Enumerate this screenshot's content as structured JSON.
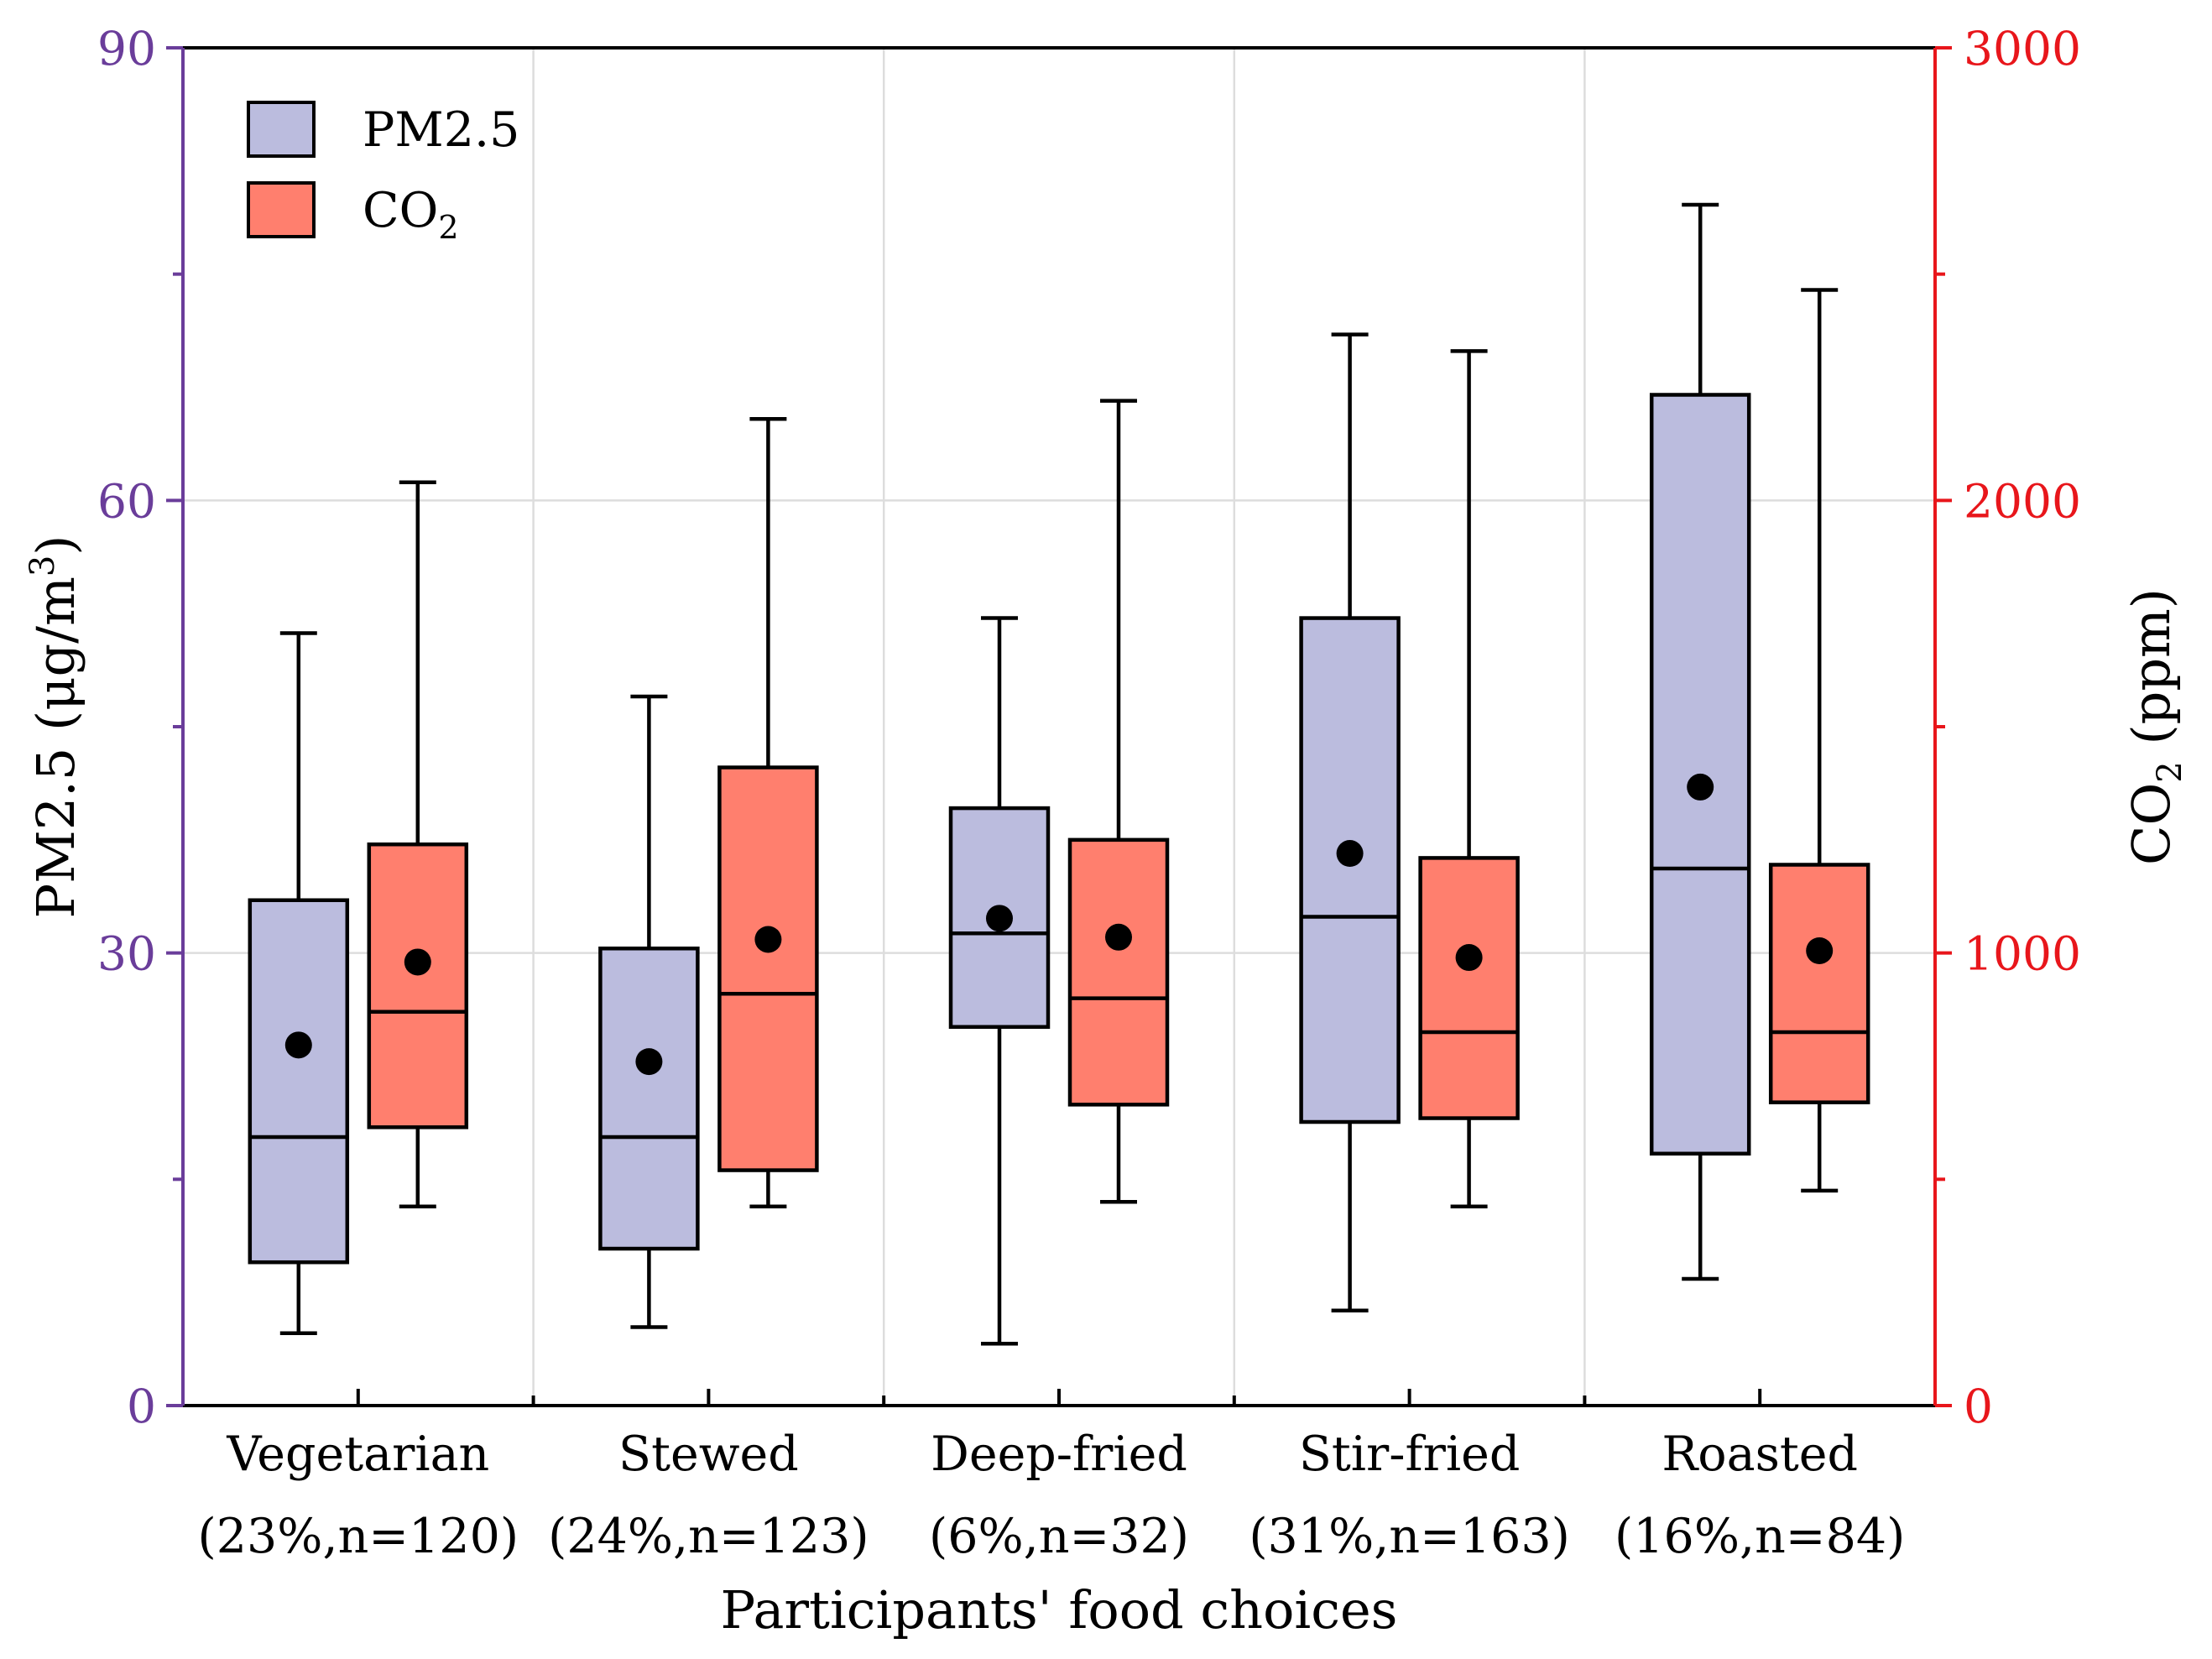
{
  "chart_data": {
    "type": "boxplot",
    "title": "",
    "xlabel": "Participants' food choices",
    "categories": [
      {
        "name": "Vegetarian",
        "detail": "(23%,n=120)"
      },
      {
        "name": "Stewed",
        "detail": "(24%,n=123)"
      },
      {
        "name": "Deep-fried",
        "detail": "(6%,n=32)"
      },
      {
        "name": "Stir-fried",
        "detail": "(31%,n=163)"
      },
      {
        "name": "Roasted",
        "detail": "(16%,n=84)"
      }
    ],
    "y_left": {
      "label_main": "PM2.5 (μg/m",
      "label_sup": "3",
      "label_end": ")",
      "range": [
        0,
        90
      ],
      "ticks": [
        "0",
        "30",
        "60",
        "90"
      ],
      "tick_values": [
        0,
        30,
        60,
        90
      ],
      "minor_tick_values": [
        15,
        45,
        75
      ]
    },
    "y_right": {
      "label_main": "CO",
      "label_sub": "2",
      "label_end": " (ppm)",
      "range": [
        0,
        3000
      ],
      "ticks": [
        "0",
        "1000",
        "2000",
        "3000"
      ],
      "tick_values": [
        0,
        1000,
        2000,
        3000
      ],
      "minor_tick_values": [
        500,
        1500,
        2500
      ]
    },
    "grid": true,
    "legend": {
      "position": "top-left",
      "entries": [
        {
          "label": "PM2.5",
          "sub": ""
        },
        {
          "label": "CO",
          "sub": "2"
        }
      ]
    },
    "series": [
      {
        "name": "PM2.5",
        "axis": "left",
        "color": "#BBBCDE",
        "boxes": [
          {
            "whisker_low": 4.8,
            "q1": 9.5,
            "median": 17.8,
            "q3": 33.5,
            "whisker_high": 51.2,
            "mean": 23.9
          },
          {
            "whisker_low": 5.2,
            "q1": 10.4,
            "median": 17.8,
            "q3": 30.3,
            "whisker_high": 47.0,
            "mean": 22.8
          },
          {
            "whisker_low": 4.1,
            "q1": 25.1,
            "median": 31.3,
            "q3": 39.6,
            "whisker_high": 52.2,
            "mean": 32.3
          },
          {
            "whisker_low": 6.3,
            "q1": 18.8,
            "median": 32.4,
            "q3": 52.2,
            "whisker_high": 71.0,
            "mean": 36.6
          },
          {
            "whisker_low": 8.4,
            "q1": 16.7,
            "median": 35.6,
            "q3": 67.0,
            "whisker_high": 79.6,
            "mean": 41.0
          }
        ]
      },
      {
        "name": "CO2",
        "axis": "right",
        "color": "#FF7F6E",
        "boxes": [
          {
            "whisker_low": 440,
            "q1": 615,
            "median": 870,
            "q3": 1240,
            "whisker_high": 2040,
            "mean": 980
          },
          {
            "whisker_low": 440,
            "q1": 520,
            "median": 910,
            "q3": 1410,
            "whisker_high": 2180,
            "mean": 1030
          },
          {
            "whisker_low": 450,
            "q1": 665,
            "median": 900,
            "q3": 1250,
            "whisker_high": 2220,
            "mean": 1035
          },
          {
            "whisker_low": 440,
            "q1": 635,
            "median": 825,
            "q3": 1210,
            "whisker_high": 2330,
            "mean": 990
          },
          {
            "whisker_low": 475,
            "q1": 670,
            "median": 825,
            "q3": 1195,
            "whisker_high": 2465,
            "mean": 1005
          }
        ]
      }
    ]
  },
  "colors": {
    "left_axis": "#6A3D9A",
    "right_axis": "#E8161B",
    "grid": "#DDDDDD",
    "ink": "#000000"
  }
}
